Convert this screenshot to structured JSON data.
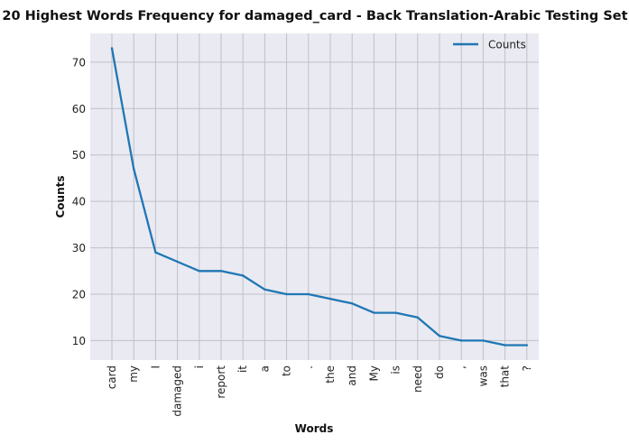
{
  "chart_data": {
    "type": "line",
    "title": "20 Highest Words Frequency for damaged_card - Back Translation-Arabic Testing Set",
    "xlabel": "Words",
    "ylabel": "Counts",
    "categories": [
      "card",
      "my",
      "I",
      "damaged",
      "i",
      "report",
      "it",
      "a",
      "to",
      ".",
      "the",
      "and",
      "My",
      "is",
      "need",
      "do",
      ",",
      "was",
      "that",
      "?"
    ],
    "series": [
      {
        "name": "Counts",
        "values": [
          73,
          47,
          29,
          27,
          25,
          25,
          24,
          21,
          20,
          20,
          19,
          18,
          16,
          16,
          15,
          11,
          10,
          10,
          9,
          9
        ],
        "color": "#1f77b4"
      }
    ],
    "yticks": [
      10,
      20,
      30,
      40,
      50,
      60,
      70
    ],
    "ylim": [
      5.8,
      76.2
    ],
    "grid": true,
    "legend": "top-right",
    "colors": {
      "plot_background": "#eaeaf2",
      "grid": "#c0c0c8"
    }
  }
}
